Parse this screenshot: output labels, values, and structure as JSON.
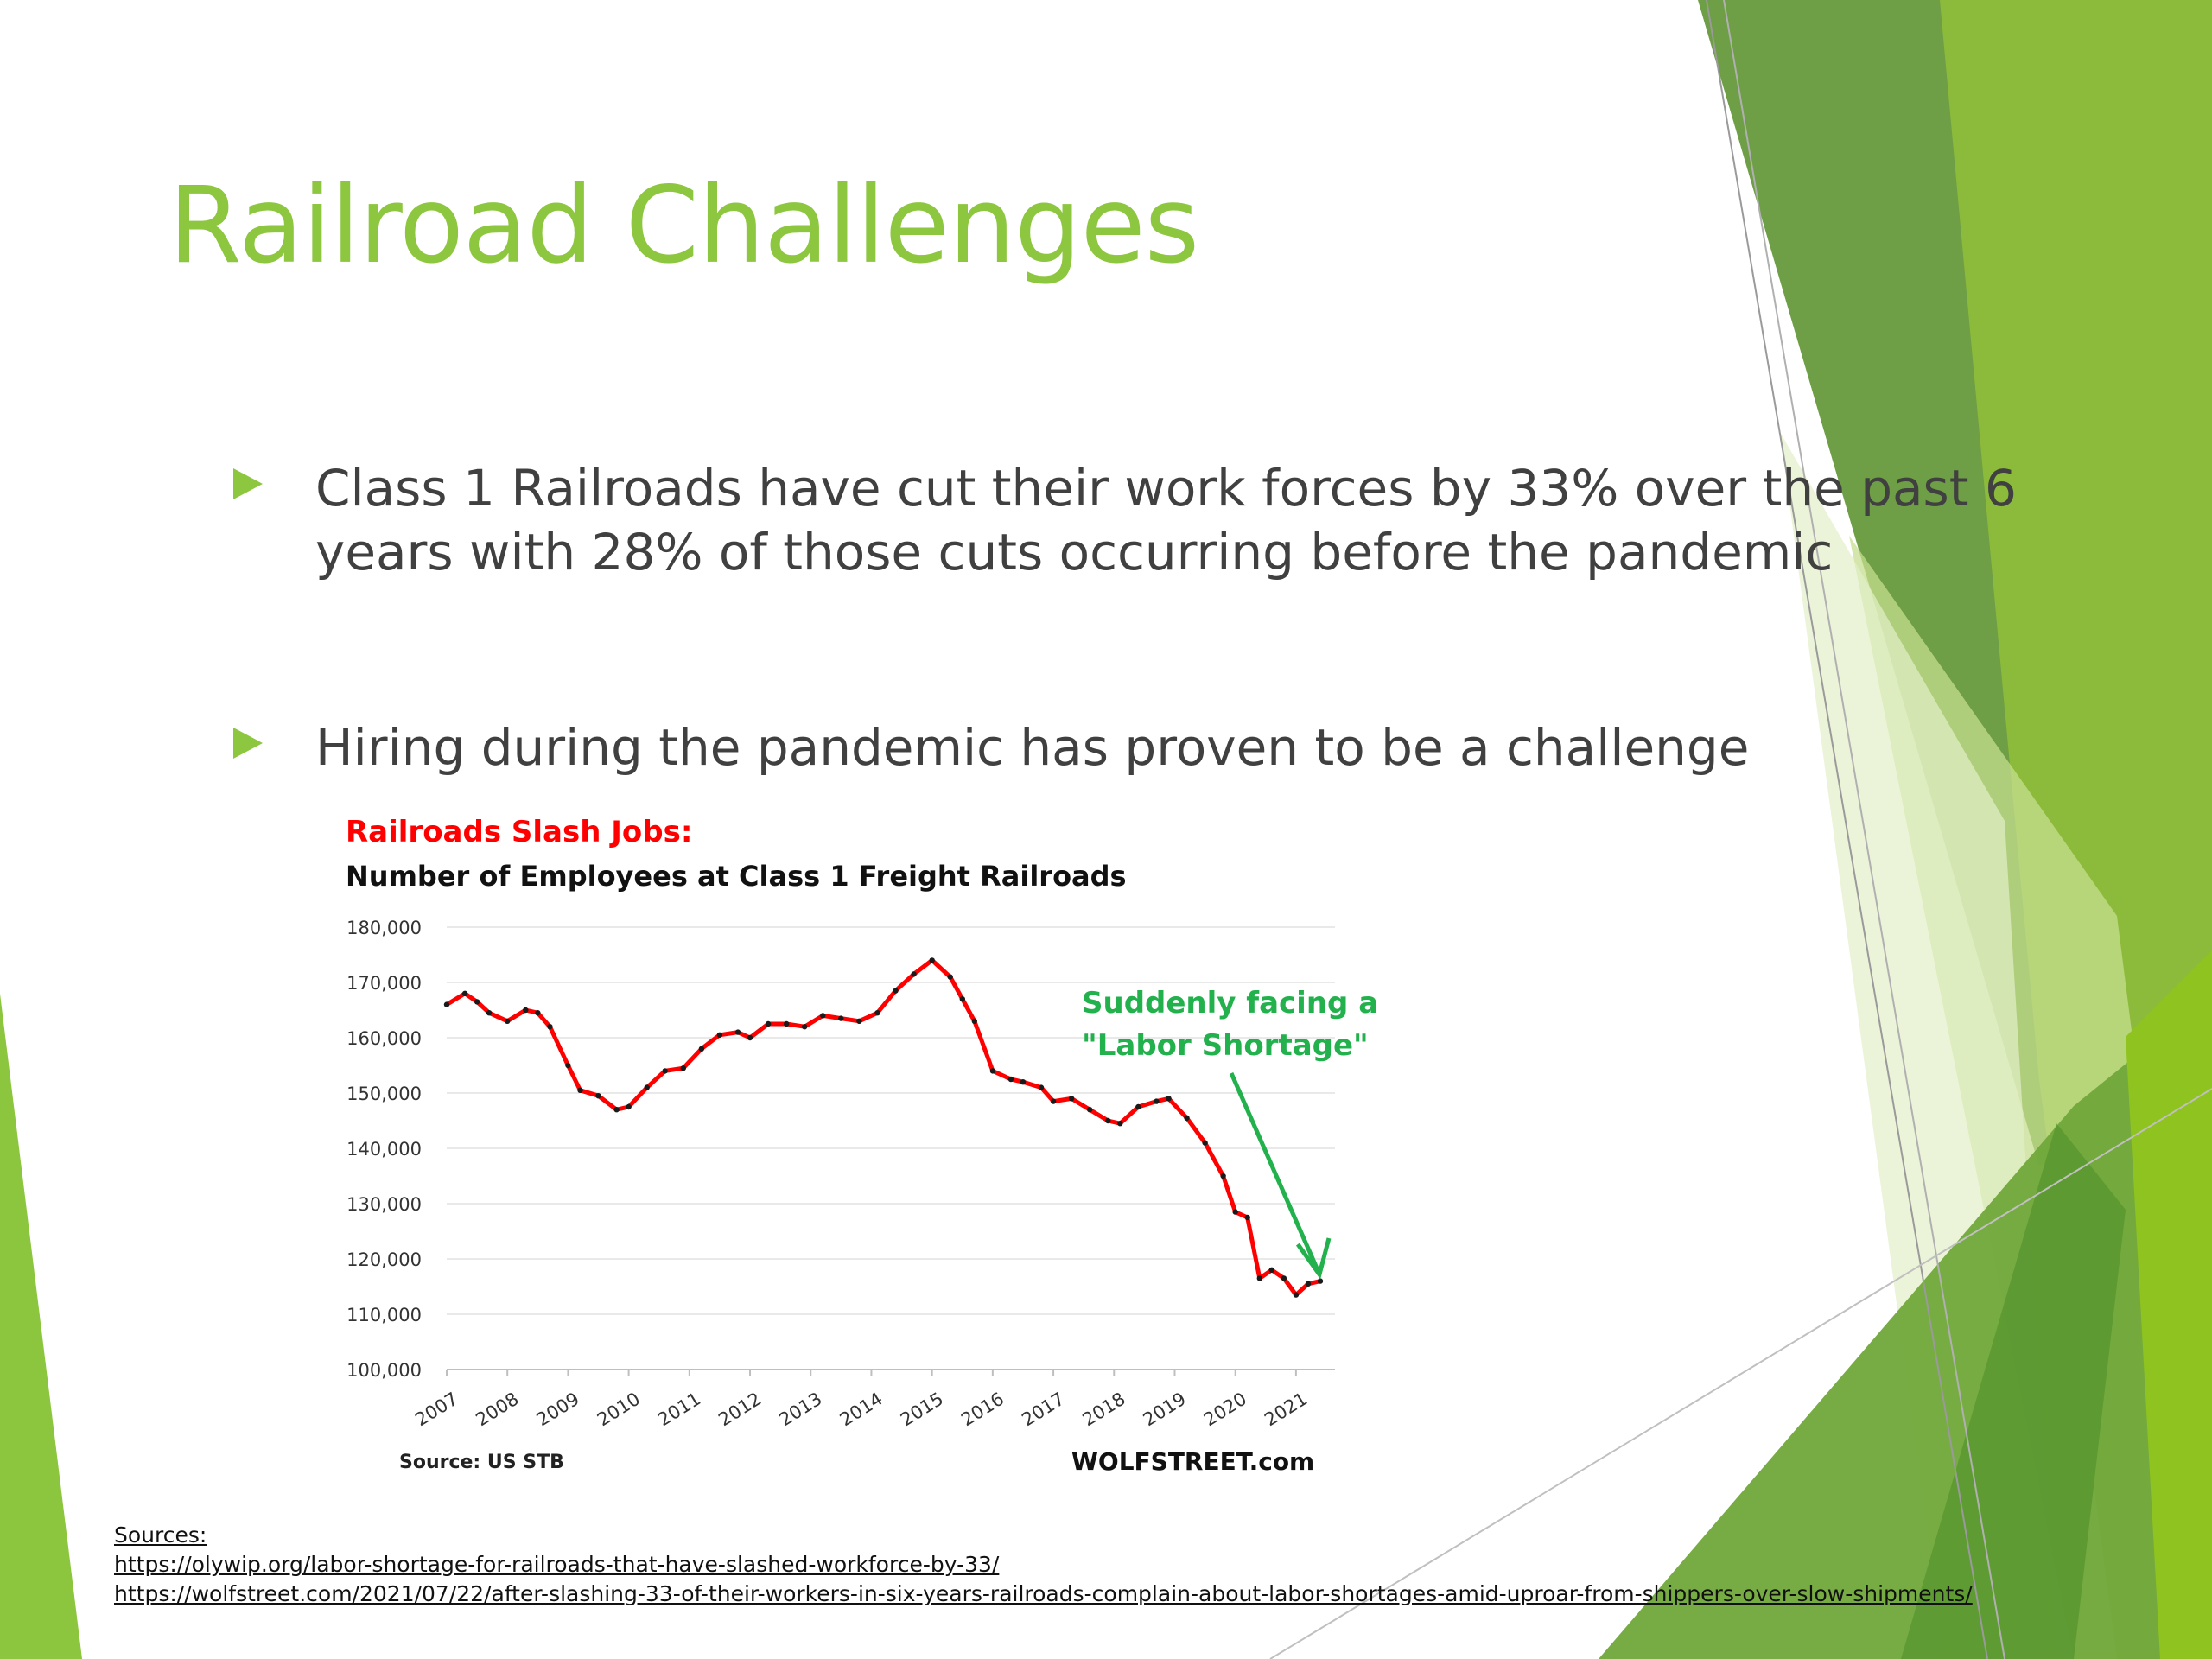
{
  "slide": {
    "title": "Railroad Challenges",
    "bullets": [
      "Class 1 Railroads have cut their work forces by 33% over the past 6 years with 28% of those cuts occurring before the pandemic",
      "Hiring during the pandemic has proven to be a challenge"
    ],
    "sources_label": "Sources:",
    "sources": [
      "https://olywip.org/labor-shortage-for-railroads-that-have-slashed-workforce-by-33/",
      "https://wolfstreet.com/2021/07/22/after-slashing-33-of-their-workers-in-six-years-railroads-complain-about-labor-shortages-amid-uproar-from-shippers-over-slow-shipments/"
    ],
    "colors": {
      "accent": "#8DC63F",
      "body_text": "#404040",
      "chart_line": "#FF0000",
      "annotation": "#22B14C"
    }
  },
  "chart": {
    "title": "Railroads  Slash Jobs:",
    "subtitle": "Number of Employees at Class 1 Freight Railroads",
    "annotation_line1": "Suddenly facing a",
    "annotation_line2": "\"Labor Shortage\"",
    "source": "Source: US STB",
    "brand": "WOLFSTREET.com"
  },
  "chart_data": {
    "type": "line",
    "title": "Railroads  Slash Jobs:",
    "subtitle": "Number of Employees at Class 1 Freight Railroads",
    "xlabel": "",
    "ylabel": "",
    "ylim": [
      100000,
      180000
    ],
    "y_ticks": [
      "180,000",
      "170,000",
      "160,000",
      "150,000",
      "140,000",
      "130,000",
      "120,000",
      "110,000",
      "100,000"
    ],
    "x_ticks": [
      "2007",
      "2008",
      "2009",
      "2010",
      "2011",
      "2012",
      "2013",
      "2014",
      "2015",
      "2016",
      "2017",
      "2018",
      "2019",
      "2020",
      "2021"
    ],
    "grid": true,
    "series": [
      {
        "x": [
          2007.0,
          2007.3,
          2007.5,
          2007.7,
          2008.0,
          2008.3,
          2008.5,
          2008.7,
          2009.0,
          2009.2,
          2009.5,
          2009.8,
          2010.0,
          2010.3,
          2010.6,
          2010.9,
          2011.2,
          2011.5,
          2011.8,
          2012.0,
          2012.3,
          2012.6,
          2012.9,
          2013.2,
          2013.5,
          2013.8,
          2014.1,
          2014.4,
          2014.7,
          2015.0,
          2015.3,
          2015.5,
          2015.7,
          2016.0,
          2016.3,
          2016.5,
          2016.8,
          2017.0,
          2017.3,
          2017.6,
          2017.9,
          2018.1,
          2018.4,
          2018.7,
          2018.9,
          2019.2,
          2019.5,
          2019.8,
          2020.0,
          2020.2,
          2020.4,
          2020.6,
          2020.8,
          2021.0,
          2021.2,
          2021.4
        ],
        "values": [
          166000,
          168000,
          166500,
          164500,
          163000,
          165000,
          164500,
          162000,
          155000,
          150500,
          149500,
          147000,
          147500,
          151000,
          154000,
          154500,
          158000,
          160500,
          161000,
          160000,
          162500,
          162500,
          162000,
          164000,
          163500,
          163000,
          164500,
          168500,
          171500,
          174000,
          171000,
          167000,
          163000,
          154000,
          152500,
          152000,
          151000,
          148500,
          149000,
          147000,
          145000,
          144500,
          147500,
          148500,
          149000,
          145500,
          141000,
          135000,
          128500,
          127500,
          116500,
          118000,
          116500,
          113500,
          115500,
          116000
        ]
      }
    ],
    "annotations": [
      {
        "text": "Suddenly facing a \"Labor Shortage\""
      }
    ],
    "source": "Source: US STB",
    "brand": "WOLFSTREET.com"
  }
}
